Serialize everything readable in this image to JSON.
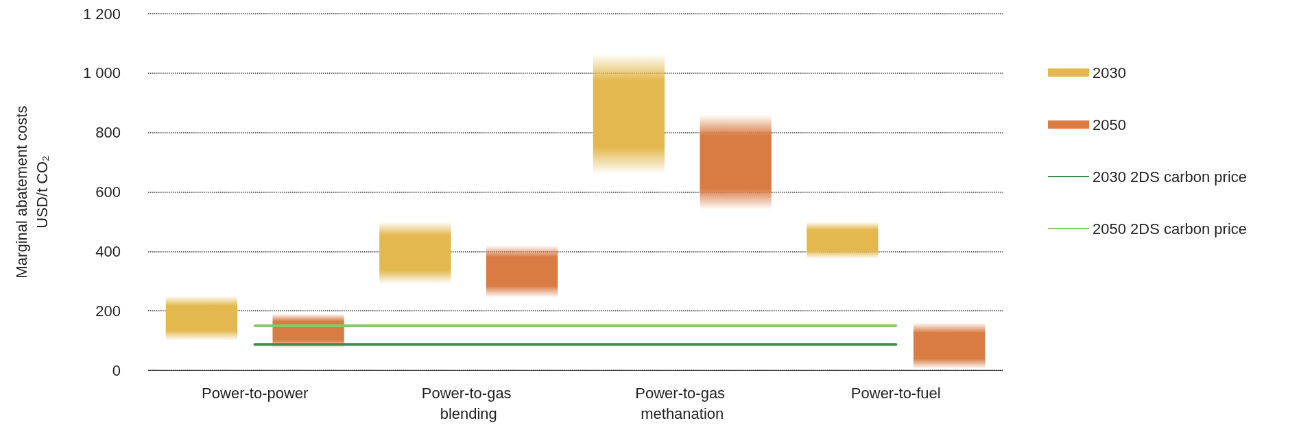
{
  "chart_data": {
    "type": "bar",
    "ylabel": "Marginal abatement costs USD/t CO₂",
    "categories": [
      "Power-to-power",
      "Power-to-gas blending",
      "Power-to-gas methanation",
      "Power-to-fuel"
    ],
    "series": [
      {
        "name": "2030",
        "color": "#e3b94f",
        "base": [
          100,
          290,
          660,
          375
        ],
        "values": [
          150,
          210,
          405,
          125
        ]
      },
      {
        "name": "2050",
        "color": "#d97c44",
        "base": [
          75,
          245,
          540,
          5
        ],
        "values": [
          115,
          175,
          320,
          155
        ]
      },
      {
        "name": "2030 2DS carbon price",
        "type": "line",
        "color": "#3f8a4f",
        "values": [
          87,
          87,
          87,
          87
        ]
      },
      {
        "name": "2050 2DS carbon price",
        "type": "line",
        "color": "#8cc66a",
        "values": [
          150,
          150,
          150,
          150
        ]
      }
    ],
    "ylim": [
      0,
      1200
    ],
    "yticks": [
      0,
      200,
      400,
      600,
      800,
      {
        "value": 1000,
        "label": "1 000"
      },
      {
        "value": 1200,
        "label": "1 200"
      }
    ],
    "grid": "y",
    "legend": "right",
    "marker": "none"
  }
}
